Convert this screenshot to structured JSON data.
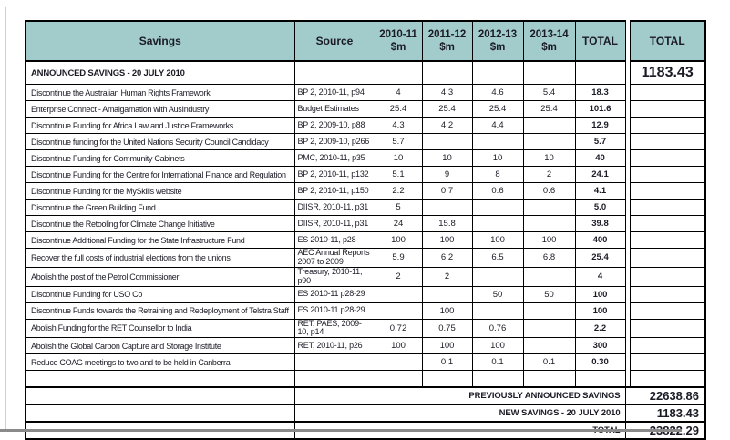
{
  "colors": {
    "header_teal": "#a2cccb",
    "grid_border": "#000000",
    "page_bottom_edge": "#8a8a8a",
    "page_left_edge": "#cfcfcf"
  },
  "table": {
    "header": {
      "savings": "Savings",
      "source": "Source",
      "years": [
        {
          "label": "2010-11",
          "unit": "$m"
        },
        {
          "label": "2011-12",
          "unit": "$m"
        },
        {
          "label": "2012-13",
          "unit": "$m"
        },
        {
          "label": "2013-14",
          "unit": "$m"
        }
      ],
      "total": "TOTAL",
      "grand_total": "TOTAL"
    },
    "section_row": {
      "label": "ANNOUNCED  SAVINGS - 20 JULY 2010",
      "grand_total": "1183.43"
    },
    "rows": [
      {
        "savings": "Discontinue the Australian Human Rights Framework",
        "source": "BP 2, 2010-11, p94",
        "y1": "4",
        "y2": "4.3",
        "y3": "4.6",
        "y4": "5.4",
        "total": "18.3",
        "grand": ""
      },
      {
        "savings": "Enterprise Connect - Amalgamation with AusIndustry",
        "source": "Budget Estimates",
        "y1": "25.4",
        "y2": "25.4",
        "y3": "25.4",
        "y4": "25.4",
        "total": "101.6",
        "grand": ""
      },
      {
        "savings": "Discontinue Funding for  Africa Law and Justice Frameworks",
        "source": "BP 2, 2009-10, p88",
        "y1": "4.3",
        "y2": "4.2",
        "y3": "4.4",
        "y4": "",
        "total": "12.9",
        "grand": ""
      },
      {
        "savings": "Discontinue funding for the United Nations Security Council Candidacy",
        "source": "BP 2, 2009-10, p266",
        "y1": "5.7",
        "y2": "",
        "y3": "",
        "y4": "",
        "total": "5.7",
        "grand": ""
      },
      {
        "savings": "Discontinue Funding for Community Cabinets",
        "source": "PMC, 2010-11, p35",
        "y1": "10",
        "y2": "10",
        "y3": "10",
        "y4": "10",
        "total": "40",
        "grand": ""
      },
      {
        "savings": "Discontinue Funding for the Centre for International Finance and Regulation",
        "source": "BP 2, 2010-11, p132",
        "y1": "5.1",
        "y2": "9",
        "y3": "8",
        "y4": "2",
        "total": "24.1",
        "grand": ""
      },
      {
        "savings": "Discontinue Funding for the MySkills website",
        "source": "BP 2, 2010-11, p150",
        "y1": "2.2",
        "y2": "0.7",
        "y3": "0.6",
        "y4": "0.6",
        "total": "4.1",
        "grand": ""
      },
      {
        "savings": "Discontinue the Green Building Fund",
        "source": "DIISR, 2010-11, p31",
        "y1": "5",
        "y2": "",
        "y3": "",
        "y4": "",
        "total": "5.0",
        "grand": ""
      },
      {
        "savings": "Discontinue the Retooling for Climate Change Initiative",
        "source": "DIISR, 2010-11, p31",
        "y1": "24",
        "y2": "15.8",
        "y3": "",
        "y4": "",
        "total": "39.8",
        "grand": ""
      },
      {
        "savings": "Discontinue Additional Funding for the State Infrastructure Fund",
        "source": "ES 2010-11, p28",
        "y1": "100",
        "y2": "100",
        "y3": "100",
        "y4": "100",
        "total": "400",
        "grand": ""
      },
      {
        "savings": "Recover the full costs of industrial elections from the unions",
        "source": "AEC Annual Reports 2007 to 2009",
        "y1": "5.9",
        "y2": "6.2",
        "y3": "6.5",
        "y4": "6.8",
        "total": "25.4",
        "grand": ""
      },
      {
        "savings": "Abolish the post of the Petrol Commissioner",
        "source": "Treasury, 2010-11, p90",
        "y1": "2",
        "y2": "2",
        "y3": "",
        "y4": "",
        "total": "4",
        "grand": ""
      },
      {
        "savings": "Discontinue Funding for USO Co",
        "source": "ES 2010-11 p28-29",
        "y1": "",
        "y2": "",
        "y3": "50",
        "y4": "50",
        "total": "100",
        "grand": ""
      },
      {
        "savings": "Discontinue Funds towards the Retraining and Redeployment of Telstra Staff",
        "source": "ES 2010-11 p28-29",
        "y1": "",
        "y2": "100",
        "y3": "",
        "y4": "",
        "total": "100",
        "grand": ""
      },
      {
        "savings": "Abolish Funding for the RET Counsellor to India",
        "source": "RET, PAES, 2009-10, p14",
        "y1": "0.72",
        "y2": "0.75",
        "y3": "0.76",
        "y4": "",
        "total": "2.2",
        "grand": ""
      },
      {
        "savings": "Abolish the Global Carbon Capture and Storage Institute",
        "source": "RET, 2010-11, p26",
        "y1": "100",
        "y2": "100",
        "y3": "100",
        "y4": "",
        "total": "300",
        "grand": ""
      },
      {
        "savings": "Reduce COAG meetings to two and to be held in Canberra",
        "source": "",
        "y1": "",
        "y2": "0.1",
        "y3": "0.1",
        "y4": "0.1",
        "total": "0.30",
        "grand": ""
      },
      {
        "savings": "",
        "source": "",
        "y1": "",
        "y2": "",
        "y3": "",
        "y4": "",
        "total": "",
        "grand": ""
      }
    ],
    "summary": [
      {
        "label": "PREVIOUSLY ANNOUNCED SAVINGS",
        "value": "22638.86"
      },
      {
        "label": "NEW SAVINGS - 20 JULY 2010",
        "value": "1183.43"
      },
      {
        "label": "TOTAL",
        "value": "23822.29"
      }
    ]
  }
}
